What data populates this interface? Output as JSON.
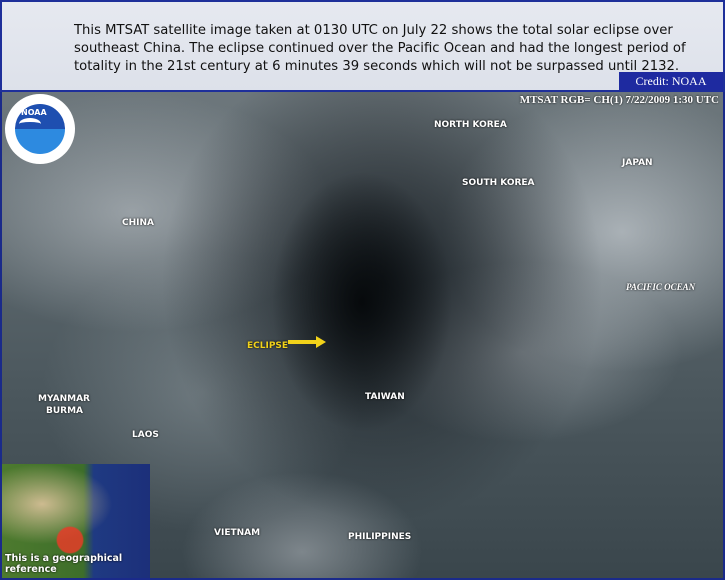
{
  "caption": {
    "text": "This MTSAT satellite image taken at 0130 UTC on July 22 shows the total solar eclipse over southeast China. The eclipse continued over the Pacific Ocean and had the longest period of totality in the 21st century at 6 minutes 39 seconds which will not be surpassed until 2132.",
    "credit": "Credit: NOAA"
  },
  "map": {
    "sat_info": "MTSAT RGB= CH(1) 7/22/2009 1:30 UTC",
    "logo_text": "NOAA",
    "labels": {
      "north_korea": "NORTH KOREA",
      "south_korea": "SOUTH KOREA",
      "japan": "JAPAN",
      "china": "CHINA",
      "pacific": "PACIFIC OCEAN",
      "eclipse": "ECLIPSE",
      "taiwan": "TAIWAN",
      "myanmar": "MYANMAR",
      "burma": "BURMA",
      "laos": "LAOS",
      "vietnam": "VIETNAM",
      "philippines": "PHILIPPINES"
    },
    "eclipse_color": "#f2d21a",
    "inset_caption": "This is a geographical reference"
  }
}
